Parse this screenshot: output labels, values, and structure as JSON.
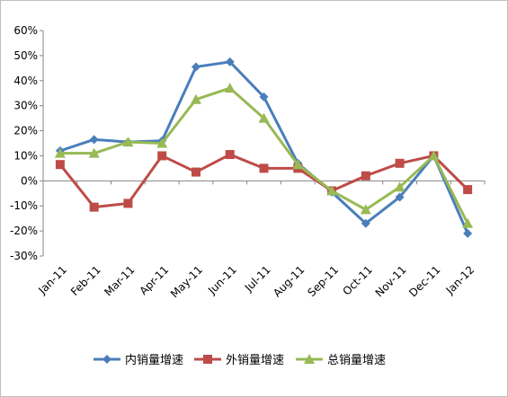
{
  "chart_data": {
    "type": "line",
    "title": "",
    "xlabel": "",
    "ylabel": "",
    "categories": [
      "Jan-11",
      "Feb-11",
      "Mar-11",
      "Apr-11",
      "May-11",
      "Jun-11",
      "Jul-11",
      "Aug-11",
      "Sep-11",
      "Oct-11",
      "Nov-11",
      "Dec-11",
      "Jan-12"
    ],
    "y_ticks": [
      "60%",
      "50%",
      "40%",
      "30%",
      "20%",
      "10%",
      "0%",
      "-10%",
      "-20%",
      "-30%"
    ],
    "ylim": [
      -30,
      60
    ],
    "y_step": 10,
    "grid": false,
    "legend_position": "bottom",
    "series": [
      {
        "name": "内销量增速",
        "color": "#4a7ebb",
        "marker": "diamond",
        "values": [
          12,
          16.5,
          15.5,
          16,
          45.5,
          47.5,
          33.5,
          7,
          -4.5,
          -17,
          -6.5,
          10,
          -21
        ]
      },
      {
        "name": "外销量增速",
        "color": "#be4b48",
        "marker": "square",
        "values": [
          6.5,
          -10.5,
          -9,
          10,
          3.5,
          10.5,
          5,
          5,
          -4,
          2,
          7,
          10,
          -3.5
        ]
      },
      {
        "name": "总销量增速",
        "color": "#98b954",
        "marker": "triangle",
        "values": [
          11,
          11,
          15.5,
          15,
          32.5,
          37,
          25,
          6.5,
          -4,
          -11.5,
          -2.5,
          10,
          -17
        ]
      }
    ]
  }
}
